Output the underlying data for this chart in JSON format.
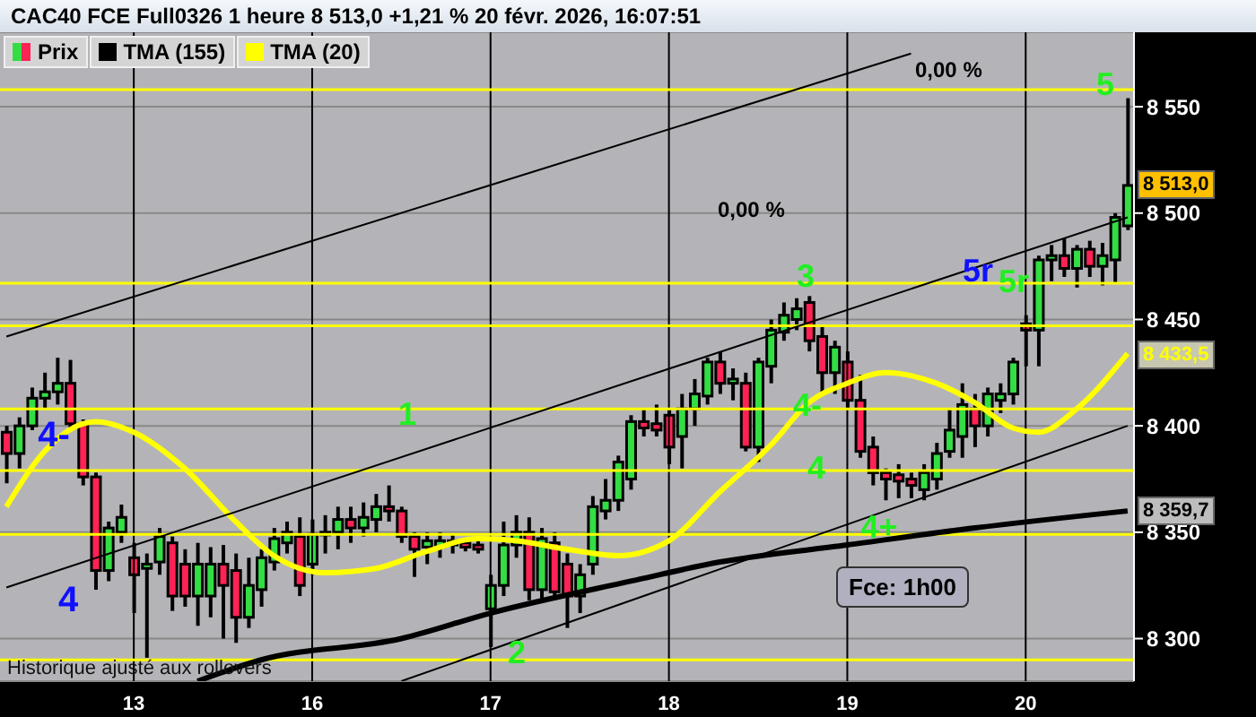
{
  "chart_data": {
    "type": "candlestick",
    "title": "CAC40 FCE Full0326 1 heure 8 513,0 +1,21 % 20 févr. 2026, 16:07:51",
    "categories": [
      null,
      null,
      null,
      null,
      null,
      null,
      null,
      null,
      null,
      null,
      "13",
      null,
      null,
      null,
      null,
      null,
      null,
      null,
      null,
      null,
      null,
      null,
      null,
      null,
      "16",
      null,
      null,
      null,
      null,
      null,
      null,
      null,
      null,
      null,
      null,
      null,
      null,
      null,
      "17",
      null,
      null,
      null,
      null,
      null,
      null,
      null,
      null,
      null,
      null,
      null,
      null,
      null,
      "18",
      null,
      null,
      null,
      null,
      null,
      null,
      null,
      null,
      null,
      null,
      null,
      null,
      null,
      "19",
      null,
      null,
      null,
      null,
      null,
      null,
      null,
      null,
      null,
      null,
      null,
      null,
      null,
      "20",
      null,
      null,
      null,
      null,
      null,
      null,
      null,
      null
    ],
    "series": [
      {
        "name": "Prix",
        "type": "candlestick",
        "ohlc": [
          [
            8397,
            8400,
            8373,
            8387
          ],
          [
            8387,
            8404,
            8380,
            8400
          ],
          [
            8400,
            8418,
            8398,
            8413
          ],
          [
            8413,
            8425,
            8408,
            8416
          ],
          [
            8416,
            8432,
            8410,
            8420
          ],
          [
            8420,
            8431,
            8398,
            8401
          ],
          [
            8401,
            8403,
            8372,
            8376
          ],
          [
            8376,
            8378,
            8323,
            8332
          ],
          [
            8332,
            8355,
            8327,
            8352
          ],
          [
            8350,
            8363,
            8345,
            8357
          ],
          [
            8338,
            8345,
            8312,
            8330
          ],
          [
            8333,
            8340,
            8291,
            8335
          ],
          [
            8336,
            8352,
            8330,
            8348
          ],
          [
            8345,
            8348,
            8313,
            8320
          ],
          [
            8335,
            8342,
            8315,
            8320
          ],
          [
            8320,
            8345,
            8306,
            8335
          ],
          [
            8320,
            8343,
            8310,
            8335
          ],
          [
            8335,
            8344,
            8300,
            8325
          ],
          [
            8332,
            8340,
            8298,
            8310
          ],
          [
            8310,
            8338,
            8305,
            8325
          ],
          [
            8323,
            8342,
            8315,
            8338
          ],
          [
            8336,
            8352,
            8332,
            8347
          ],
          [
            8345,
            8355,
            8340,
            8350
          ],
          [
            8348,
            8357,
            8320,
            8325
          ],
          [
            8335,
            8356,
            8330,
            8349
          ],
          [
            8349,
            8358,
            8340,
            8350
          ],
          [
            8350,
            8362,
            8342,
            8356
          ],
          [
            8356,
            8362,
            8345,
            8352
          ],
          [
            8352,
            8364,
            8348,
            8357
          ],
          [
            8356,
            8368,
            8350,
            8362
          ],
          [
            8362,
            8372,
            8355,
            8360
          ],
          [
            8360,
            8362,
            8345,
            8348
          ],
          [
            8348,
            8350,
            8329,
            8342
          ],
          [
            8343,
            8350,
            8335,
            8346
          ],
          [
            8343,
            8350,
            8338,
            8346
          ],
          [
            8346,
            8349,
            8340,
            8344
          ],
          [
            8345,
            8347,
            8341,
            8343
          ],
          [
            8344,
            8346,
            8340,
            8342
          ],
          [
            8314,
            8330,
            8296,
            8325
          ],
          [
            8325,
            8355,
            8320,
            8344
          ],
          [
            8344,
            8358,
            8338,
            8350
          ],
          [
            8350,
            8357,
            8318,
            8323
          ],
          [
            8323,
            8352,
            8318,
            8347
          ],
          [
            8345,
            8350,
            8318,
            8322
          ],
          [
            8335,
            8340,
            8305,
            8320
          ],
          [
            8320,
            8335,
            8312,
            8330
          ],
          [
            8335,
            8367,
            8330,
            8362
          ],
          [
            8360,
            8375,
            8356,
            8365
          ],
          [
            8365,
            8386,
            8360,
            8383
          ],
          [
            8375,
            8405,
            8370,
            8402
          ],
          [
            8402,
            8408,
            8395,
            8399
          ],
          [
            8401,
            8410,
            8395,
            8398
          ],
          [
            8405,
            8408,
            8382,
            8390
          ],
          [
            8395,
            8415,
            8380,
            8408
          ],
          [
            8408,
            8422,
            8400,
            8415
          ],
          [
            8414,
            8432,
            8410,
            8430
          ],
          [
            8430,
            8435,
            8415,
            8420
          ],
          [
            8420,
            8427,
            8412,
            8422
          ],
          [
            8420,
            8425,
            8388,
            8390
          ],
          [
            8390,
            8432,
            8383,
            8430
          ],
          [
            8428,
            8450,
            8420,
            8445
          ],
          [
            8444,
            8458,
            8440,
            8452
          ],
          [
            8450,
            8460,
            8445,
            8455
          ],
          [
            8458,
            8461,
            8435,
            8440
          ],
          [
            8442,
            8447,
            8415,
            8425
          ],
          [
            8425,
            8440,
            8415,
            8437
          ],
          [
            8430,
            8435,
            8408,
            8412
          ],
          [
            8412,
            8424,
            8385,
            8388
          ],
          [
            8390,
            8395,
            8372,
            8378
          ],
          [
            8378,
            8380,
            8365,
            8375
          ],
          [
            8377,
            8382,
            8366,
            8374
          ],
          [
            8375,
            8378,
            8366,
            8372
          ],
          [
            8370,
            8382,
            8365,
            8378
          ],
          [
            8375,
            8392,
            8370,
            8387
          ],
          [
            8388,
            8408,
            8385,
            8398
          ],
          [
            8395,
            8420,
            8385,
            8410
          ],
          [
            8408,
            8415,
            8390,
            8400
          ],
          [
            8400,
            8418,
            8395,
            8415
          ],
          [
            8412,
            8420,
            8406,
            8415
          ],
          [
            8415,
            8432,
            8410,
            8430
          ],
          [
            8448,
            8452,
            8428,
            8445
          ],
          [
            8445,
            8480,
            8428,
            8478
          ],
          [
            8478,
            8485,
            8468,
            8480
          ],
          [
            8480,
            8488,
            8470,
            8474
          ],
          [
            8474,
            8485,
            8465,
            8483
          ],
          [
            8483,
            8487,
            8470,
            8475
          ],
          [
            8475,
            8486,
            8466,
            8480
          ],
          [
            8478,
            8500,
            8467,
            8498
          ],
          [
            8494,
            8554,
            8492,
            8513
          ]
        ]
      },
      {
        "name": "TMA (155)",
        "type": "line",
        "color": "#000000",
        "values": [
          null,
          null,
          null,
          null,
          null,
          null,
          null,
          null,
          null,
          null,
          null,
          null,
          null,
          null,
          null,
          8280,
          null,
          null,
          null,
          null,
          8290,
          null,
          null,
          null,
          null,
          null,
          null,
          null,
          null,
          null,
          null,
          8300,
          null,
          null,
          null,
          null,
          null,
          null,
          8312,
          null,
          null,
          null,
          null,
          null,
          null,
          null,
          null,
          null,
          null,
          8327,
          null,
          null,
          null,
          null,
          null,
          null,
          8336,
          null,
          null,
          null,
          null,
          null,
          null,
          null,
          null,
          null,
          8344,
          null,
          null,
          null,
          null,
          null,
          null,
          null,
          null,
          null,
          8352,
          null,
          null,
          null,
          null,
          null,
          null,
          null,
          null,
          null,
          null,
          null,
          8360
        ]
      },
      {
        "name": "TMA (20)",
        "type": "line",
        "color": "#ffff00",
        "values": [
          8362,
          null,
          null,
          8388,
          null,
          null,
          8401,
          8402,
          null,
          null,
          8397,
          null,
          null,
          null,
          8380,
          null,
          null,
          null,
          8355,
          null,
          null,
          8339,
          null,
          null,
          null,
          8331,
          null,
          null,
          null,
          8333,
          null,
          null,
          null,
          8341,
          null,
          null,
          null,
          8347,
          null,
          null,
          8346,
          null,
          null,
          null,
          8342,
          null,
          null,
          null,
          8339,
          null,
          null,
          null,
          8346,
          null,
          null,
          null,
          8369,
          null,
          null,
          null,
          8391,
          null,
          null,
          8411,
          null,
          null,
          8420,
          null,
          null,
          8425,
          null,
          null,
          null,
          8420,
          null,
          null,
          8411,
          null,
          null,
          8399,
          null,
          8397,
          null,
          null,
          8408,
          null,
          null,
          null,
          8434
        ]
      },
      {
        "type": "line",
        "color": "#000000",
        "values": [
          8442,
          null,
          null,
          null,
          null,
          null,
          null,
          null,
          null,
          null,
          null,
          null,
          null,
          null,
          null,
          null,
          null,
          null,
          null,
          null,
          null,
          null,
          null,
          null,
          null,
          null,
          null,
          null,
          null,
          null,
          null,
          null,
          null,
          null,
          null,
          null,
          null,
          null,
          null,
          null,
          null,
          null,
          null,
          null,
          null,
          null,
          null,
          null,
          null,
          null,
          null,
          null,
          null,
          null,
          null,
          null,
          null,
          null,
          null,
          null,
          null,
          null,
          null,
          null,
          null,
          null,
          null,
          null,
          null,
          null,
          null,
          8575,
          null,
          null,
          null,
          null,
          null,
          null,
          null,
          null,
          null,
          null,
          null,
          null,
          null,
          null,
          null,
          null,
          null
        ]
      },
      {
        "type": "line",
        "color": "#000000",
        "values": [
          8324,
          null,
          null,
          null,
          null,
          null,
          null,
          null,
          null,
          null,
          null,
          null,
          null,
          null,
          null,
          null,
          null,
          null,
          null,
          null,
          null,
          null,
          null,
          null,
          null,
          null,
          null,
          null,
          null,
          null,
          null,
          null,
          null,
          null,
          null,
          null,
          null,
          null,
          null,
          null,
          null,
          null,
          null,
          null,
          null,
          null,
          null,
          null,
          null,
          null,
          null,
          null,
          null,
          null,
          null,
          null,
          null,
          null,
          null,
          null,
          null,
          null,
          null,
          null,
          null,
          null,
          null,
          null,
          null,
          null,
          null,
          null,
          null,
          null,
          null,
          null,
          null,
          null,
          null,
          null,
          null,
          null,
          null,
          null,
          null,
          null,
          null,
          null,
          8498
        ]
      },
      {
        "type": "line",
        "color": "#000000",
        "values": [
          null,
          null,
          null,
          null,
          null,
          null,
          null,
          null,
          null,
          null,
          null,
          null,
          null,
          null,
          null,
          null,
          null,
          null,
          null,
          null,
          null,
          null,
          null,
          null,
          null,
          null,
          null,
          null,
          null,
          null,
          null,
          8280,
          null,
          null,
          null,
          null,
          null,
          null,
          null,
          null,
          null,
          null,
          null,
          null,
          null,
          null,
          null,
          null,
          null,
          null,
          null,
          null,
          null,
          null,
          null,
          null,
          null,
          null,
          null,
          null,
          null,
          null,
          null,
          null,
          null,
          null,
          null,
          null,
          null,
          null,
          null,
          null,
          null,
          null,
          null,
          null,
          null,
          null,
          null,
          null,
          null,
          null,
          null,
          null,
          null,
          null,
          null,
          null,
          8400
        ]
      }
    ],
    "ylim": [
      8280,
      8585
    ],
    "yticks": [
      {
        "value": 8300,
        "label": "8 300"
      },
      {
        "value": 8350,
        "label": "8 350"
      },
      {
        "value": 8400,
        "label": "8 400"
      },
      {
        "value": 8450,
        "label": "8 450"
      },
      {
        "value": 8500,
        "label": "8 500"
      },
      {
        "value": 8550,
        "label": "8 550"
      }
    ],
    "ref_lines": [
      {
        "axis": "y",
        "value": 8558,
        "color": "#ffff00"
      },
      {
        "axis": "y",
        "value": 8467,
        "color": "#ffff00"
      },
      {
        "axis": "y",
        "value": 8447,
        "color": "#ffff00"
      },
      {
        "axis": "y",
        "value": 8408,
        "color": "#ffff00"
      },
      {
        "axis": "y",
        "value": 8379,
        "color": "#ffff00"
      },
      {
        "axis": "y",
        "value": 8349,
        "color": "#ffff00"
      },
      {
        "axis": "y",
        "value": 8290,
        "color": "#ffff00"
      }
    ],
    "annotations": [
      "4-",
      "4",
      "1",
      "2",
      "3",
      "4-",
      "4",
      "4+",
      "5r",
      "5r",
      "5",
      "0,00 %",
      "0,00 %",
      "Fce: 1h00",
      {
        "text": "8 513,0",
        "y": 8513
      },
      {
        "text": "8 433,5",
        "y": 8433.5
      },
      {
        "text": "8 359,7",
        "y": 8359.7
      },
      "Historique ajusté aux rollovers"
    ],
    "grid": true,
    "legend": "top left"
  }
}
